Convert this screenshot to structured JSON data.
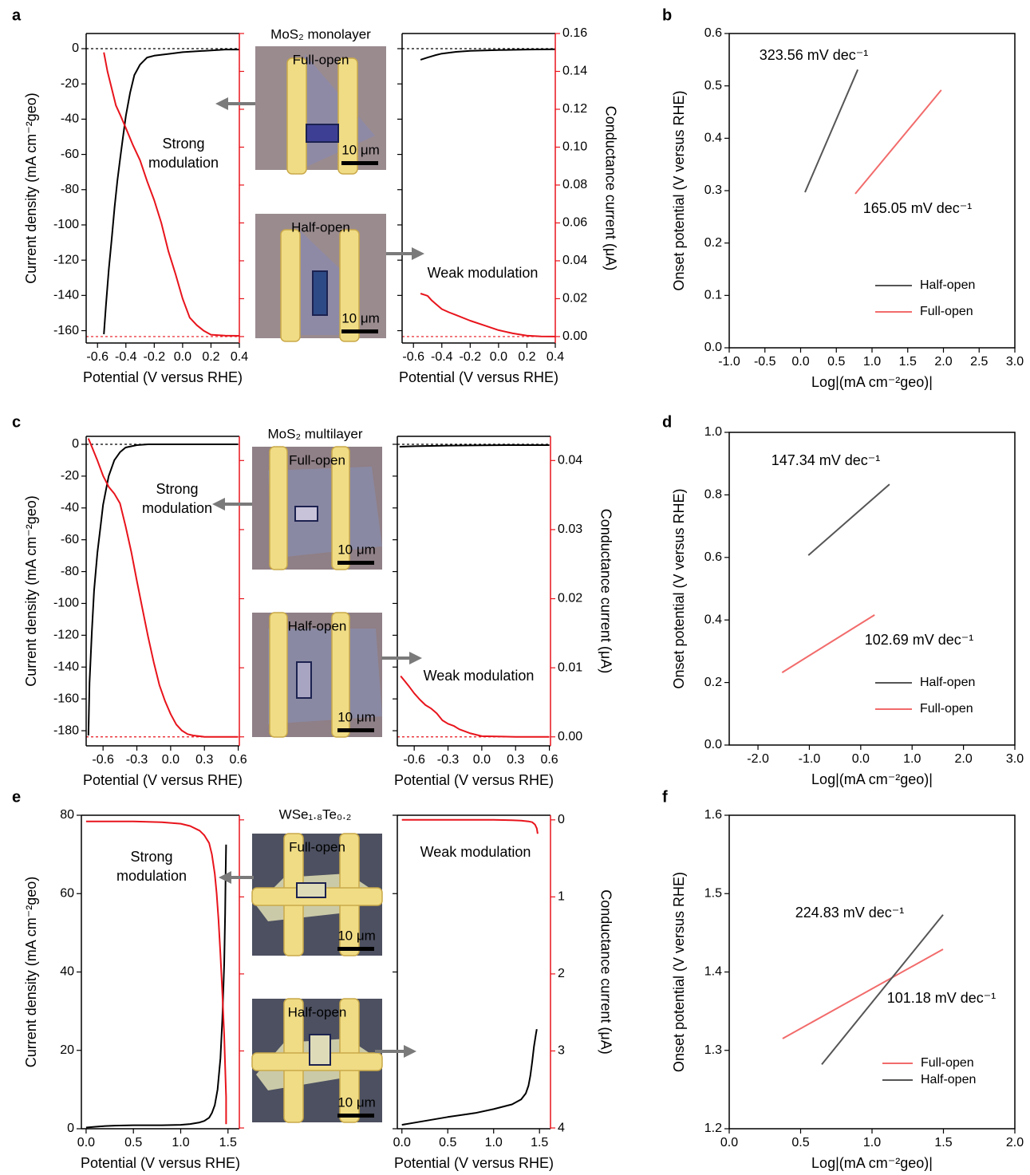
{
  "chart_data": [
    {
      "panel": "a",
      "type": "line",
      "title": "MoS₂ monolayer",
      "xlabel": "Potential (V versus RHE)",
      "ylabel": "Current density (mA cm⁻²geo)",
      "y2label": "Conductance current (μA)",
      "xlim": [
        -0.68,
        0.4
      ],
      "xticks": [
        -0.6,
        -0.4,
        -0.2,
        {
          "value": 0,
          "label": "0.0"
        },
        0.2,
        0.4
      ],
      "ylim": [
        -167,
        8.6
      ],
      "yticks": [
        0,
        -20,
        -40,
        -60,
        -80,
        -100,
        -120,
        -140,
        -160
      ],
      "y2lim": [
        -0.0034,
        0.16
      ],
      "y2ticks": [
        {
          "value": 0,
          "label": "0.00"
        },
        0.02,
        0.04,
        0.06,
        0.08,
        {
          "value": 0.1,
          "label": "0.10"
        },
        0.12,
        0.14,
        0.16
      ],
      "reference_lines": [
        {
          "axis": "y",
          "value": 0,
          "color": "#000000"
        },
        {
          "axis": "y2",
          "value": 0,
          "color": "#e8141c"
        }
      ],
      "subplots": [
        {
          "series": [
            {
              "color": "#000000",
              "axis": "y",
              "x": [
                -0.555,
                -0.54,
                -0.52,
                -0.5,
                -0.48,
                -0.46,
                -0.44,
                -0.42,
                -0.4,
                -0.37,
                -0.34,
                -0.3,
                -0.25,
                -0.2,
                -0.1,
                0,
                0.1,
                0.2,
                0.3,
                0.4
              ],
              "values": [
                -162,
                -145,
                -125,
                -108,
                -90,
                -75,
                -62,
                -50,
                -38,
                -25,
                -15,
                -9,
                -5,
                -4,
                -3,
                -2,
                -1.5,
                -1,
                -0.5,
                -0.5
              ]
            },
            {
              "color": "#e8141c",
              "axis": "y2",
              "x": [
                -0.555,
                -0.53,
                -0.5,
                -0.47,
                -0.44,
                -0.4,
                -0.35,
                -0.3,
                -0.25,
                -0.2,
                -0.15,
                -0.1,
                -0.05,
                0,
                0.05,
                0.1,
                0.15,
                0.2,
                0.3,
                0.4
              ],
              "values": [
                0.15,
                0.14,
                0.131,
                0.122,
                0.117,
                0.11,
                0.101,
                0.093,
                0.082,
                0.072,
                0.06,
                0.045,
                0.033,
                0.02,
                0.01,
                0.006,
                0.003,
                0.001,
                0.0005,
                0.0004
              ]
            }
          ]
        },
        {
          "series": [
            {
              "color": "#000000",
              "axis": "y",
              "x": [
                -0.55,
                -0.5,
                -0.45,
                -0.4,
                -0.3,
                -0.2,
                0,
                0.2,
                0.4
              ],
              "values": [
                -6.3,
                -5,
                -3.8,
                -2.8,
                -1.8,
                -1.2,
                -0.8,
                -0.5,
                -0.3
              ]
            },
            {
              "color": "#e8141c",
              "axis": "y2",
              "x": [
                -0.55,
                -0.52,
                -0.5,
                -0.47,
                -0.45,
                -0.4,
                -0.35,
                -0.3,
                -0.2,
                -0.1,
                0,
                0.1,
                0.2,
                0.3,
                0.4
              ],
              "values": [
                0.0227,
                0.022,
                0.0215,
                0.019,
                0.0177,
                0.0145,
                0.0128,
                0.0114,
                0.0084,
                0.0059,
                0.0034,
                0.0017,
                0.0005,
                0.0001,
                0
              ]
            }
          ]
        }
      ],
      "annotations": [
        {
          "lines": [
            "Strong",
            "modulation"
          ],
          "color": "#e8141c"
        },
        {
          "lines": [
            "Weak modulation"
          ],
          "color": "#e8141c"
        }
      ],
      "images": [
        {
          "label": "Full-open",
          "scale_bar": "10 μm"
        },
        {
          "label": "Half-open",
          "scale_bar": "10 μm"
        }
      ]
    },
    {
      "panel": "b",
      "type": "line",
      "xlabel": "Log|(mA cm⁻²geo)|",
      "ylabel": "Onset potential (V versus RHE)",
      "xlim": [
        -1,
        3
      ],
      "xticks": [
        {
          "value": -1,
          "label": "-1.0"
        },
        -0.5,
        {
          "value": 0,
          "label": "0.0"
        },
        0.5,
        {
          "value": 1,
          "label": "1.0"
        },
        1.5,
        {
          "value": 2,
          "label": "2.0"
        },
        2.5,
        {
          "value": 3,
          "label": "3.0"
        }
      ],
      "ylim": [
        0,
        0.6
      ],
      "yticks": [
        {
          "value": 0,
          "label": "0.0"
        },
        0.1,
        0.2,
        0.3,
        0.4,
        0.5,
        0.6
      ],
      "legend": "lower right",
      "series": [
        {
          "name": "Half-open",
          "color": "#555555",
          "x": [
            0.061,
            0.8
          ],
          "values": [
            0.297,
            0.531
          ]
        },
        {
          "name": "Full-open",
          "color": "#f26b6b",
          "x": [
            0.765,
            1.97
          ],
          "values": [
            0.294,
            0.492
          ]
        }
      ],
      "annotations": [
        {
          "text": "323.56 mV dec⁻¹",
          "color": "#6b6b6b"
        },
        {
          "text": "165.05 mV dec⁻¹",
          "color": "#f26b6b"
        }
      ]
    },
    {
      "panel": "c",
      "type": "line",
      "title": "MoS₂ multilayer",
      "xlabel": "Potential (V versus RHE)",
      "ylabel": "Current density (mA cm⁻²geo)",
      "y2label": "Conductance current (μA)",
      "xlim": [
        -0.75,
        0.61
      ],
      "xticks": [
        -0.6,
        -0.3,
        {
          "value": 0,
          "label": "0.0"
        },
        0.3,
        0.6
      ],
      "ylim": [
        -189.5,
        5
      ],
      "yticks": [
        0,
        -20,
        -40,
        -60,
        -80,
        -100,
        -120,
        -140,
        -160,
        -180
      ],
      "y2lim": [
        -0.0013,
        0.0435
      ],
      "y2ticks": [
        {
          "value": 0,
          "label": "0.00"
        },
        0.01,
        0.02,
        0.03,
        0.04
      ],
      "reference_lines": [
        {
          "axis": "y",
          "value": 0,
          "color": "#000000"
        },
        {
          "axis": "y2",
          "value": 0,
          "color": "#e8141c"
        }
      ],
      "subplots": [
        {
          "series": [
            {
              "color": "#000000",
              "axis": "y",
              "x": [
                -0.73,
                -0.72,
                -0.7,
                -0.68,
                -0.65,
                -0.62,
                -0.6,
                -0.55,
                -0.5,
                -0.45,
                -0.4,
                -0.3,
                -0.2,
                0,
                0.3,
                0.6
              ],
              "values": [
                -183,
                -150,
                -118,
                -92,
                -68,
                -50,
                -38,
                -20,
                -10,
                -5,
                -2,
                -0.5,
                0,
                0,
                0,
                0
              ]
            },
            {
              "color": "#e8141c",
              "axis": "y2",
              "x": [
                -0.73,
                -0.7,
                -0.65,
                -0.6,
                -0.55,
                -0.5,
                -0.45,
                -0.4,
                -0.35,
                -0.3,
                -0.25,
                -0.2,
                -0.15,
                -0.1,
                -0.05,
                0,
                0.05,
                0.1,
                0.15,
                0.2,
                0.3,
                0.6
              ],
              "values": [
                0.0432,
                0.042,
                0.04,
                0.0378,
                0.0362,
                0.0352,
                0.0338,
                0.0305,
                0.0268,
                0.0226,
                0.0185,
                0.0145,
                0.0108,
                0.0075,
                0.0052,
                0.0033,
                0.0018,
                0.0009,
                0.0004,
                0.0002,
                0,
                0
              ]
            }
          ]
        },
        {
          "series": [
            {
              "color": "#000000",
              "axis": "y",
              "x": [
                -0.73,
                -0.6,
                -0.3,
                0,
                0.3,
                0.6
              ],
              "values": [
                -1.5,
                -1.2,
                -0.8,
                -0.6,
                -0.5,
                -0.5
              ]
            },
            {
              "color": "#e8141c",
              "axis": "y2",
              "x": [
                -0.72,
                -0.68,
                -0.65,
                -0.6,
                -0.55,
                -0.5,
                -0.45,
                -0.4,
                -0.35,
                -0.3,
                -0.25,
                -0.2,
                -0.15,
                -0.1,
                -0.05,
                0,
                0.3,
                0.6
              ],
              "values": [
                0.0088,
                0.008,
                0.0074,
                0.0063,
                0.0054,
                0.0046,
                0.0041,
                0.0034,
                0.0024,
                0.0019,
                0.0016,
                0.0011,
                0.0008,
                0.0005,
                0.0003,
                0.0001,
                0,
                0
              ]
            }
          ]
        }
      ],
      "annotations": [
        {
          "lines": [
            "Strong",
            "modulation"
          ],
          "color": "#e8141c"
        },
        {
          "lines": [
            "Weak modulation"
          ],
          "color": "#e8141c"
        }
      ],
      "images": [
        {
          "label": "Full-open",
          "scale_bar": "10 μm"
        },
        {
          "label": "Half-open",
          "scale_bar": "10 μm"
        }
      ]
    },
    {
      "panel": "d",
      "type": "line",
      "xlabel": "Log|(mA cm⁻²geo)|",
      "ylabel": "Onset potential (V versus RHE)",
      "xlim": [
        -2.56,
        3
      ],
      "xticks": [
        {
          "value": -2,
          "label": "-2.0"
        },
        {
          "value": -1,
          "label": "-1.0"
        },
        {
          "value": 0,
          "label": "0.0"
        },
        {
          "value": 1,
          "label": "1.0"
        },
        {
          "value": 2,
          "label": "2.0"
        },
        {
          "value": 3,
          "label": "3.0"
        }
      ],
      "ylim": [
        0,
        1
      ],
      "yticks": [
        {
          "value": 0,
          "label": "0.0"
        },
        0.2,
        0.4,
        0.6,
        0.8,
        {
          "value": 1,
          "label": "1.0"
        }
      ],
      "legend": "lower right",
      "series": [
        {
          "name": "Half-open",
          "color": "#555555",
          "x": [
            -1.02,
            0.56
          ],
          "values": [
            0.607,
            0.834
          ]
        },
        {
          "name": "Full-open",
          "color": "#f26b6b",
          "x": [
            -1.53,
            0.27
          ],
          "values": [
            0.232,
            0.416
          ]
        }
      ],
      "annotations": [
        {
          "text": "147.34 mV dec⁻¹",
          "color": "#6b6b6b"
        },
        {
          "text": "102.69 mV dec⁻¹",
          "color": "#f26b6b"
        }
      ]
    },
    {
      "panel": "e",
      "type": "line",
      "title": "WSe₁.₈Te₀.₂",
      "xlabel": "Potential (V versus RHE)",
      "ylabel": "Current density (mA cm⁻²geo)",
      "y2label": "Conductance current (μA)",
      "xlim": [
        -0.05,
        1.62
      ],
      "xticks": [
        {
          "value": 0,
          "label": "0.0"
        },
        0.5,
        {
          "value": 1,
          "label": "1.0"
        },
        1.5
      ],
      "ylim": [
        0,
        80
      ],
      "yticks": [
        0,
        20,
        40,
        60,
        80
      ],
      "y2lim": [
        4.01,
        -0.06
      ],
      "y2ticks": [
        0,
        1,
        2,
        3,
        4
      ],
      "reference_lines": [],
      "subplots": [
        {
          "series": [
            {
              "color": "#000000",
              "axis": "y",
              "x": [
                0,
                0.1,
                0.2,
                0.3,
                0.5,
                0.8,
                1.0,
                1.1,
                1.2,
                1.25,
                1.3,
                1.33,
                1.36,
                1.39,
                1.42,
                1.44,
                1.46,
                1.47,
                1.475,
                1.48
              ],
              "values": [
                0.3,
                0.5,
                0.7,
                0.8,
                0.9,
                0.9,
                1.0,
                1.2,
                1.6,
                2.0,
                2.8,
                4,
                6,
                10,
                18,
                28,
                42,
                55,
                65,
                72.5
              ]
            },
            {
              "color": "#e8141c",
              "axis": "y2",
              "x": [
                0,
                0.2,
                0.5,
                0.8,
                1.0,
                1.1,
                1.2,
                1.25,
                1.3,
                1.33,
                1.36,
                1.38,
                1.4,
                1.42,
                1.44,
                1.46,
                1.47,
                1.48,
                1.48
              ],
              "values": [
                0.02,
                0.02,
                0.02,
                0.03,
                0.05,
                0.08,
                0.14,
                0.2,
                0.3,
                0.45,
                0.7,
                0.95,
                1.3,
                1.75,
                2.25,
                2.8,
                3.2,
                3.6,
                3.95
              ]
            }
          ]
        },
        {
          "series": [
            {
              "color": "#000000",
              "axis": "y",
              "x": [
                0,
                0.2,
                0.5,
                0.8,
                1.0,
                1.2,
                1.3,
                1.35,
                1.38,
                1.4,
                1.42,
                1.44,
                1.46,
                1.47
              ],
              "values": [
                1.0,
                1.8,
                3.0,
                4.0,
                5.0,
                6.2,
                7.5,
                9,
                11,
                13.5,
                17,
                21,
                24,
                25.4
              ]
            },
            {
              "color": "#e8141c",
              "axis": "y2",
              "x": [
                0,
                0.5,
                1.0,
                1.2,
                1.3,
                1.38,
                1.42,
                1.45,
                1.47,
                1.48
              ],
              "values": [
                0,
                0,
                0,
                0.005,
                0.01,
                0.02,
                0.03,
                0.06,
                0.11,
                0.18
              ]
            }
          ]
        }
      ],
      "annotations": [
        {
          "lines": [
            "Strong",
            "modulation"
          ],
          "color": "#e8141c"
        },
        {
          "lines": [
            "Weak modulation"
          ],
          "color": "#e8141c"
        }
      ],
      "images": [
        {
          "label": "Full-open",
          "scale_bar": "10 μm"
        },
        {
          "label": "Half-open",
          "scale_bar": "10 μm"
        }
      ]
    },
    {
      "panel": "f",
      "type": "line",
      "xlabel": "Log|(mA cm⁻²geo)|",
      "ylabel": "Onset potential (V versus RHE)",
      "xlim": [
        0,
        2
      ],
      "xticks": [
        {
          "value": 0,
          "label": "0.0"
        },
        0.5,
        {
          "value": 1,
          "label": "1.0"
        },
        1.5,
        {
          "value": 2,
          "label": "2.0"
        }
      ],
      "ylim": [
        1.2,
        1.6
      ],
      "yticks": [
        1.2,
        1.3,
        1.4,
        1.5,
        1.6
      ],
      "legend": "lower center",
      "series": [
        {
          "name": "Full-open",
          "color": "#f26b6b",
          "x": [
            0.374,
            1.497
          ],
          "values": [
            1.315,
            1.429
          ]
        },
        {
          "name": "Half-open",
          "color": "#555555",
          "x": [
            0.648,
            1.497
          ],
          "values": [
            1.282,
            1.473
          ]
        }
      ],
      "annotations": [
        {
          "text": "224.83 mV dec⁻¹",
          "color": "#6b6b6b"
        },
        {
          "text": "101.18 mV dec⁻¹",
          "color": "#f26b6b"
        }
      ]
    }
  ]
}
